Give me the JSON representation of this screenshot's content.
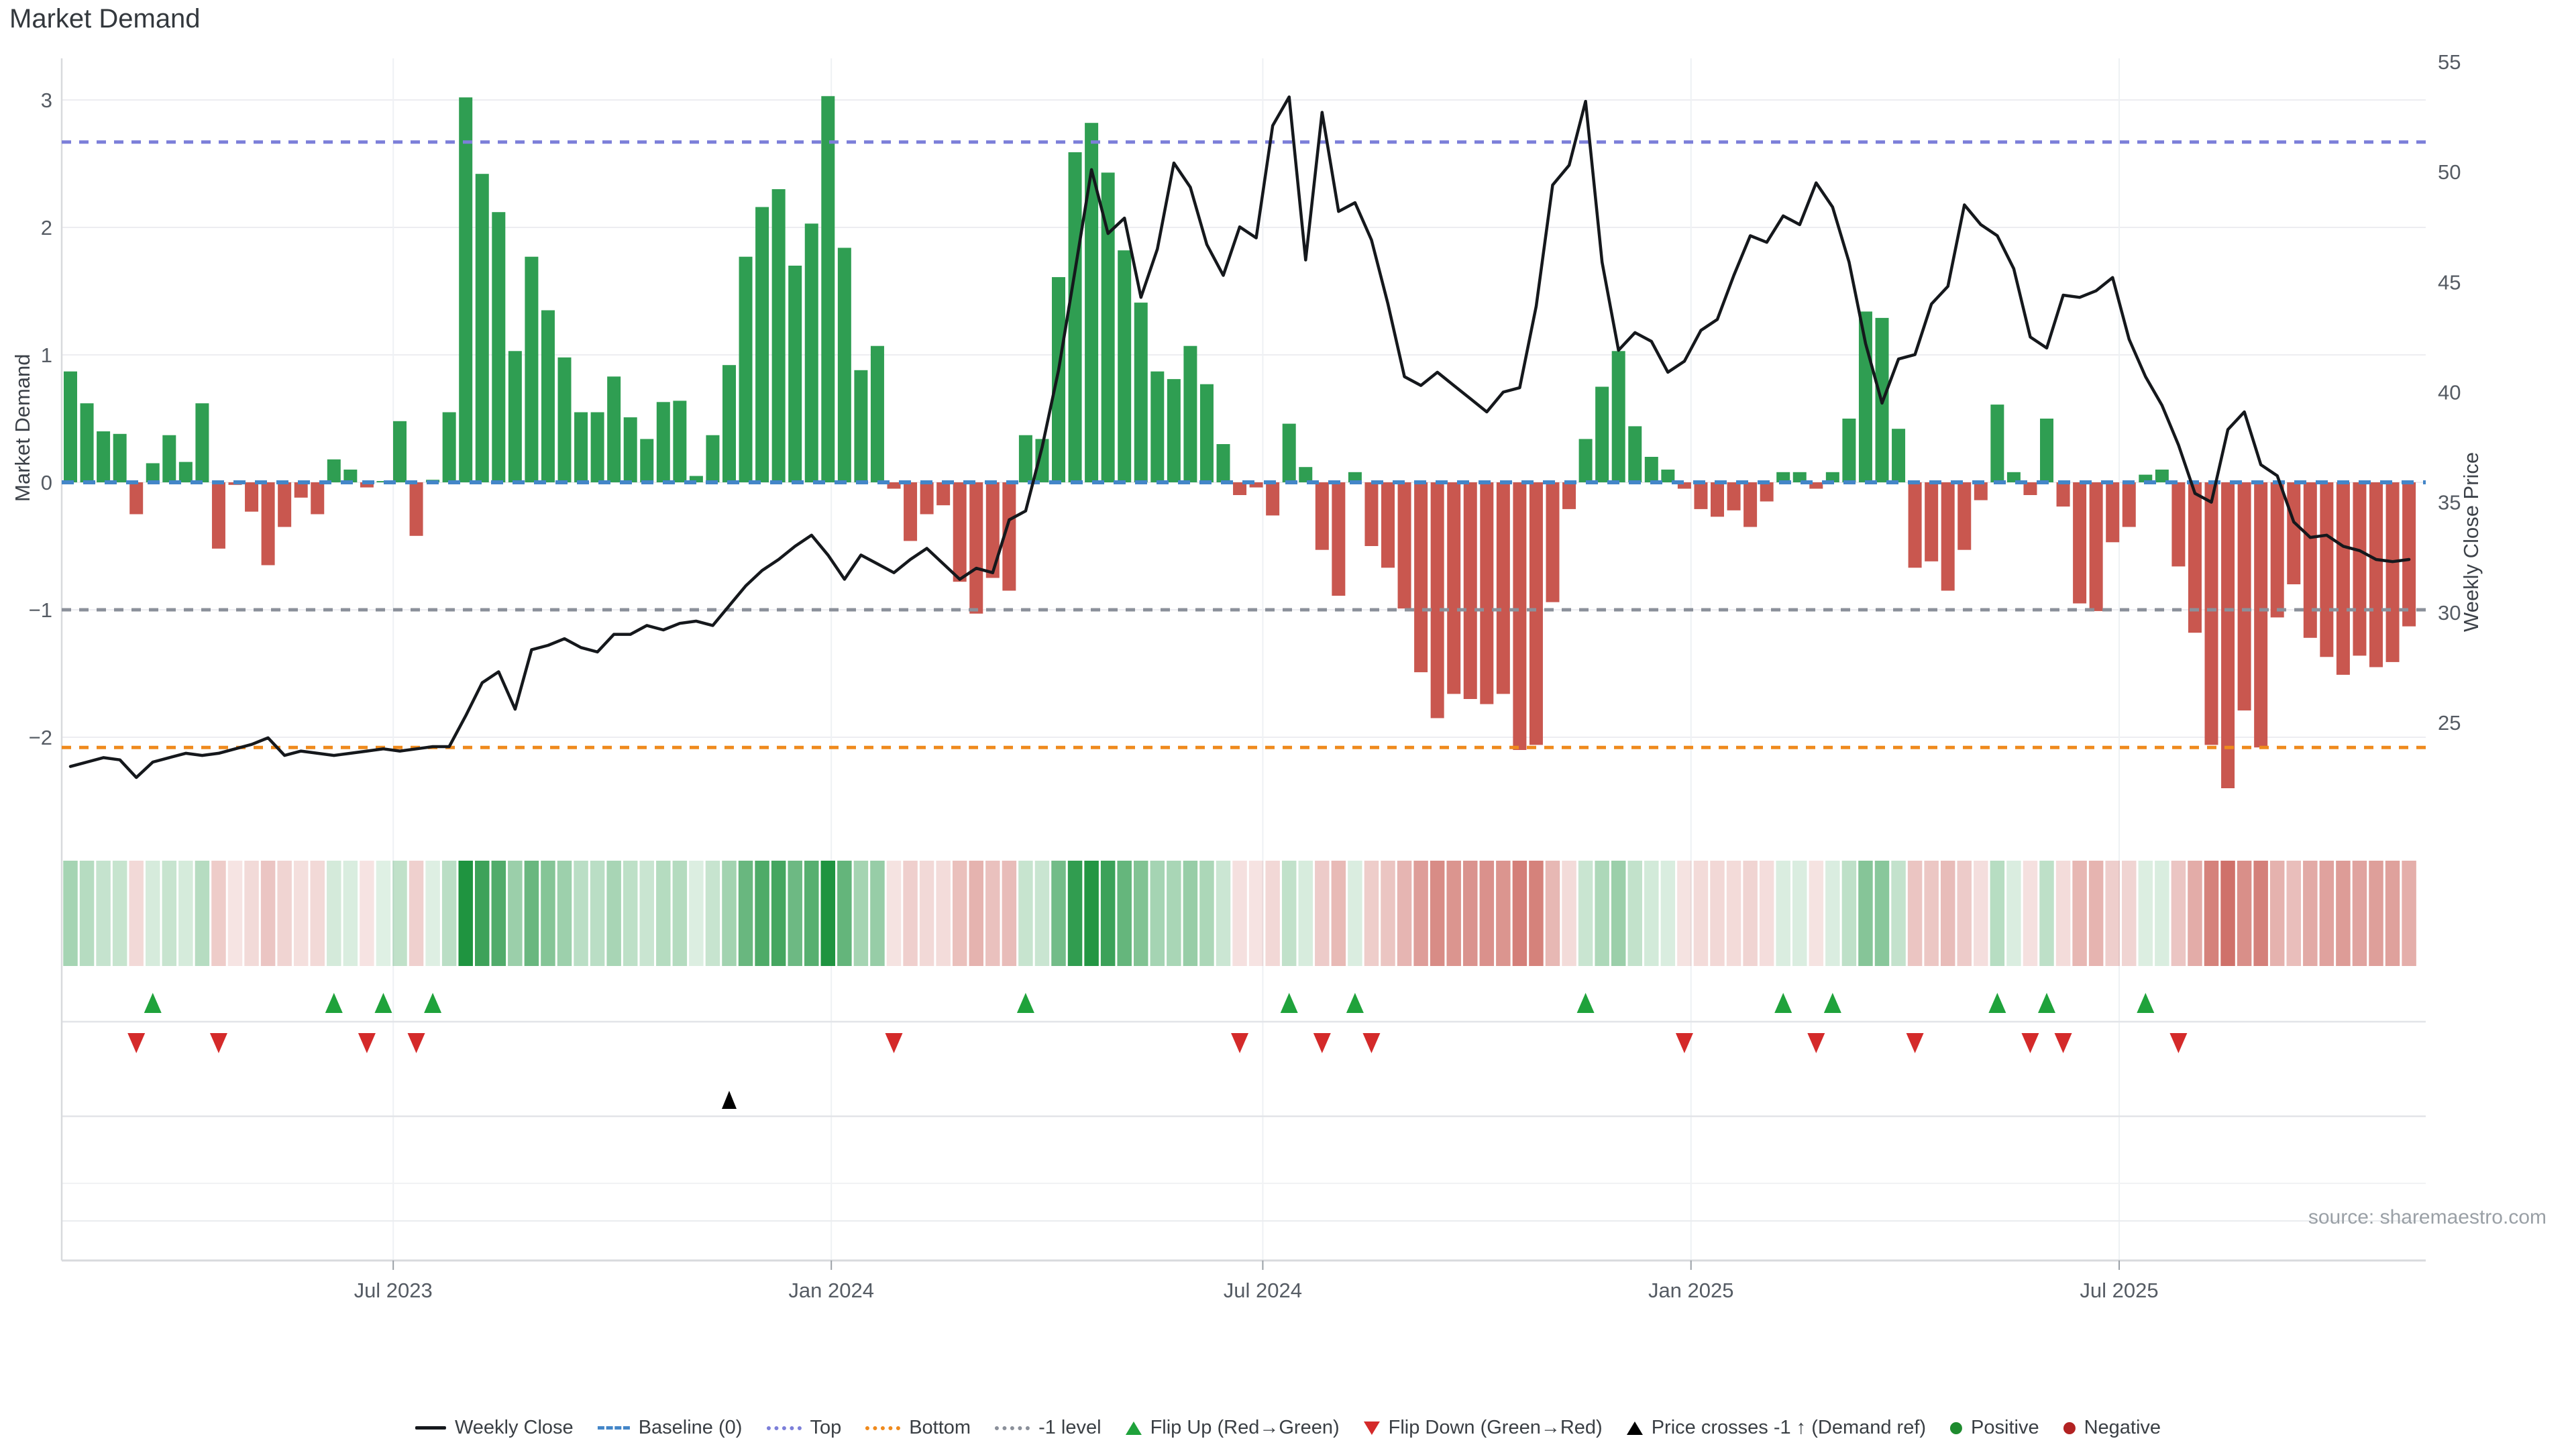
{
  "title": "Market Demand",
  "source_note": "source: sharemaestro.com",
  "colors": {
    "bar_positive": "#2f9e52",
    "bar_negative": "#c9574f",
    "price_line": "#15181c",
    "baseline": "#4486c8",
    "top_line": "#7c7fd9",
    "bottom_line": "#ef8a1d",
    "minus1_line": "#8b909a",
    "flip_up": "#1fa23b",
    "flip_down": "#d42a2a",
    "price_cross": "#000000",
    "dot_positive": "#1e8b2e",
    "dot_negative": "#b22222",
    "heat_positive": "#1f9440",
    "heat_negative": "#c0453c",
    "grid": "#ededf1",
    "vgrid": "#eef1f4",
    "tick_text": "#555b63",
    "axis_line": "#d8dadd"
  },
  "chart_data": {
    "type": "bar+line",
    "title": "Market Demand",
    "x_axis": {
      "tick_labels": [
        "Jul 2023",
        "Jan 2024",
        "Jul 2024",
        "Jan 2025",
        "Jul 2025"
      ],
      "tick_weeks": [
        19.6,
        46.2,
        72.4,
        98.4,
        124.4
      ]
    },
    "left_axis": {
      "label": "Market Demand",
      "ticks": [
        3,
        2,
        1,
        0,
        -1,
        -2
      ],
      "range": [
        -2.6,
        3.3
      ]
    },
    "right_axis": {
      "label": "Weekly Close Price",
      "ticks": [
        55,
        50,
        45,
        40,
        35,
        30,
        25
      ],
      "range": [
        25,
        55
      ]
    },
    "reference_lines": {
      "baseline": 0,
      "top": 2.67,
      "bottom": -2.08,
      "minus1": -1
    },
    "series": {
      "demand": [
        0.87,
        0.62,
        0.4,
        0.38,
        -0.25,
        0.15,
        0.37,
        0.16,
        0.62,
        -0.52,
        -0.02,
        -0.23,
        -0.65,
        -0.35,
        -0.12,
        -0.25,
        0.18,
        0.1,
        -0.04,
        0.01,
        0.48,
        -0.42,
        0.02,
        0.55,
        3.02,
        2.42,
        2.12,
        1.03,
        1.77,
        1.35,
        0.98,
        0.55,
        0.55,
        0.83,
        0.51,
        0.34,
        0.63,
        0.64,
        0.05,
        0.37,
        0.92,
        1.77,
        2.16,
        2.3,
        1.7,
        2.03,
        3.03,
        1.84,
        0.88,
        1.07,
        -0.05,
        -0.46,
        -0.25,
        -0.18,
        -0.78,
        -1.03,
        -0.75,
        -0.85,
        0.37,
        0.34,
        1.61,
        2.59,
        2.82,
        2.43,
        1.82,
        1.41,
        0.87,
        0.81,
        1.07,
        0.77,
        0.3,
        -0.1,
        -0.04,
        -0.26,
        0.46,
        0.12,
        -0.53,
        -0.89,
        0.08,
        -0.5,
        -0.67,
        -0.99,
        -1.49,
        -1.85,
        -1.66,
        -1.7,
        -1.74,
        -1.66,
        -2.1,
        -2.06,
        -0.94,
        -0.21,
        0.34,
        0.75,
        1.03,
        0.44,
        0.2,
        0.1,
        -0.05,
        -0.21,
        -0.27,
        -0.22,
        -0.35,
        -0.15,
        0.08,
        0.08,
        -0.05,
        0.08,
        0.5,
        1.34,
        1.29,
        0.42,
        -0.67,
        -0.62,
        -0.85,
        -0.53,
        -0.14,
        0.61,
        0.08,
        -0.1,
        0.5,
        -0.19,
        -0.95,
        -1.01,
        -0.47,
        -0.35,
        0.06,
        0.1,
        -0.66,
        -1.18,
        -2.06,
        -2.4,
        -1.79,
        -2.08,
        -1.06,
        -0.8,
        -1.22,
        -1.37,
        -1.51,
        -1.36,
        -1.45,
        -1.41,
        -1.13
      ],
      "weekly_close": [
        23.0,
        23.2,
        23.4,
        23.3,
        22.5,
        23.2,
        23.4,
        23.6,
        23.5,
        23.6,
        23.8,
        24.0,
        24.3,
        23.5,
        23.7,
        23.6,
        23.5,
        23.6,
        23.7,
        23.8,
        23.7,
        23.8,
        23.9,
        23.9,
        25.3,
        26.8,
        27.3,
        25.6,
        28.3,
        28.5,
        28.8,
        28.4,
        28.2,
        29.0,
        29.0,
        29.4,
        29.2,
        29.5,
        29.6,
        29.4,
        30.3,
        31.2,
        31.9,
        32.4,
        33.0,
        33.5,
        32.6,
        31.5,
        32.6,
        32.2,
        31.8,
        32.4,
        32.9,
        32.2,
        31.5,
        32.0,
        31.8,
        34.2,
        34.6,
        37.5,
        41.0,
        45.5,
        50.1,
        47.2,
        47.9,
        44.3,
        46.5,
        50.4,
        49.3,
        46.7,
        45.3,
        47.5,
        47.0,
        52.1,
        53.4,
        46.0,
        52.7,
        48.2,
        48.6,
        46.9,
        44.0,
        40.7,
        40.3,
        40.9,
        40.3,
        39.7,
        39.1,
        40.0,
        40.2,
        43.9,
        49.4,
        50.3,
        53.2,
        45.9,
        41.9,
        42.7,
        42.3,
        40.9,
        41.4,
        42.8,
        43.3,
        45.3,
        47.1,
        46.8,
        48.0,
        47.6,
        49.5,
        48.4,
        45.9,
        42.2,
        39.5,
        41.5,
        41.7,
        44.0,
        44.8,
        48.5,
        47.6,
        47.1,
        45.6,
        42.5,
        42.0,
        44.4,
        44.3,
        44.6,
        45.2,
        42.4,
        40.7,
        39.4,
        37.6,
        35.4,
        35.0,
        38.3,
        39.1,
        36.7,
        36.2,
        34.1,
        33.4,
        33.5,
        33.0,
        32.8,
        32.4,
        32.3,
        32.4
      ]
    },
    "markers": {
      "flip_up_weeks": [
        5,
        16,
        19,
        22,
        58,
        74,
        78,
        92,
        104,
        107,
        117,
        120,
        126
      ],
      "flip_down_weeks": [
        4,
        9,
        18,
        21,
        50,
        71,
        76,
        79,
        98,
        106,
        112,
        119,
        121,
        128
      ],
      "price_cross_weeks": [
        40
      ]
    },
    "legend_position": "bottom",
    "grid": true
  },
  "legend": {
    "items": [
      {
        "label": "Weekly Close",
        "swatch": "line",
        "color": "#15181c"
      },
      {
        "label": "Baseline (0)",
        "swatch": "dash",
        "color": "#4486c8"
      },
      {
        "label": "Top",
        "swatch": "dots",
        "color": "#7c7fd9"
      },
      {
        "label": "Bottom",
        "swatch": "dots",
        "color": "#ef8a1d"
      },
      {
        "label": "-1 level",
        "swatch": "dots",
        "color": "#8b909a"
      },
      {
        "label": "Flip Up (Red→Green)",
        "swatch": "tri-up",
        "color": "#1fa23b"
      },
      {
        "label": "Flip Down (Green→Red)",
        "swatch": "tri-down",
        "color": "#d42a2a"
      },
      {
        "label": "Price crosses -1 ↑ (Demand ref)",
        "swatch": "tri-up",
        "color": "#000000"
      },
      {
        "label": "Positive",
        "swatch": "dot",
        "color": "#1e8b2e"
      },
      {
        "label": "Negative",
        "swatch": "dot",
        "color": "#b22222"
      }
    ]
  }
}
